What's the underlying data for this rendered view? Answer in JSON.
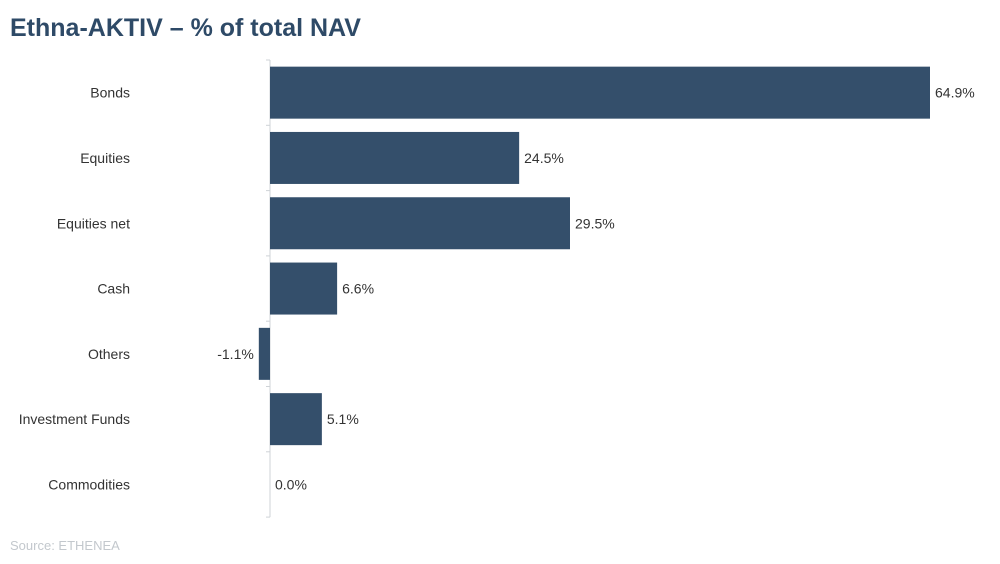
{
  "chart_data": {
    "type": "bar",
    "orientation": "horizontal",
    "title": "Ethna-AKTIV – % of total NAV",
    "categories": [
      "Bonds",
      "Equities",
      "Equities net",
      "Cash",
      "Others",
      "Investment Funds",
      "Commodities"
    ],
    "values": [
      64.9,
      24.5,
      29.5,
      6.6,
      -1.1,
      5.1,
      0.0
    ],
    "data_labels": [
      "64.9%",
      "24.5%",
      "29.5%",
      "6.6%",
      "-1.1%",
      "5.1%",
      "0.0%"
    ],
    "bar_color": "#344f6b",
    "xlim": [
      -1.1,
      64.9
    ],
    "grid": false,
    "legend": "none"
  },
  "footer": {
    "source": "Source: ETHENEA"
  }
}
